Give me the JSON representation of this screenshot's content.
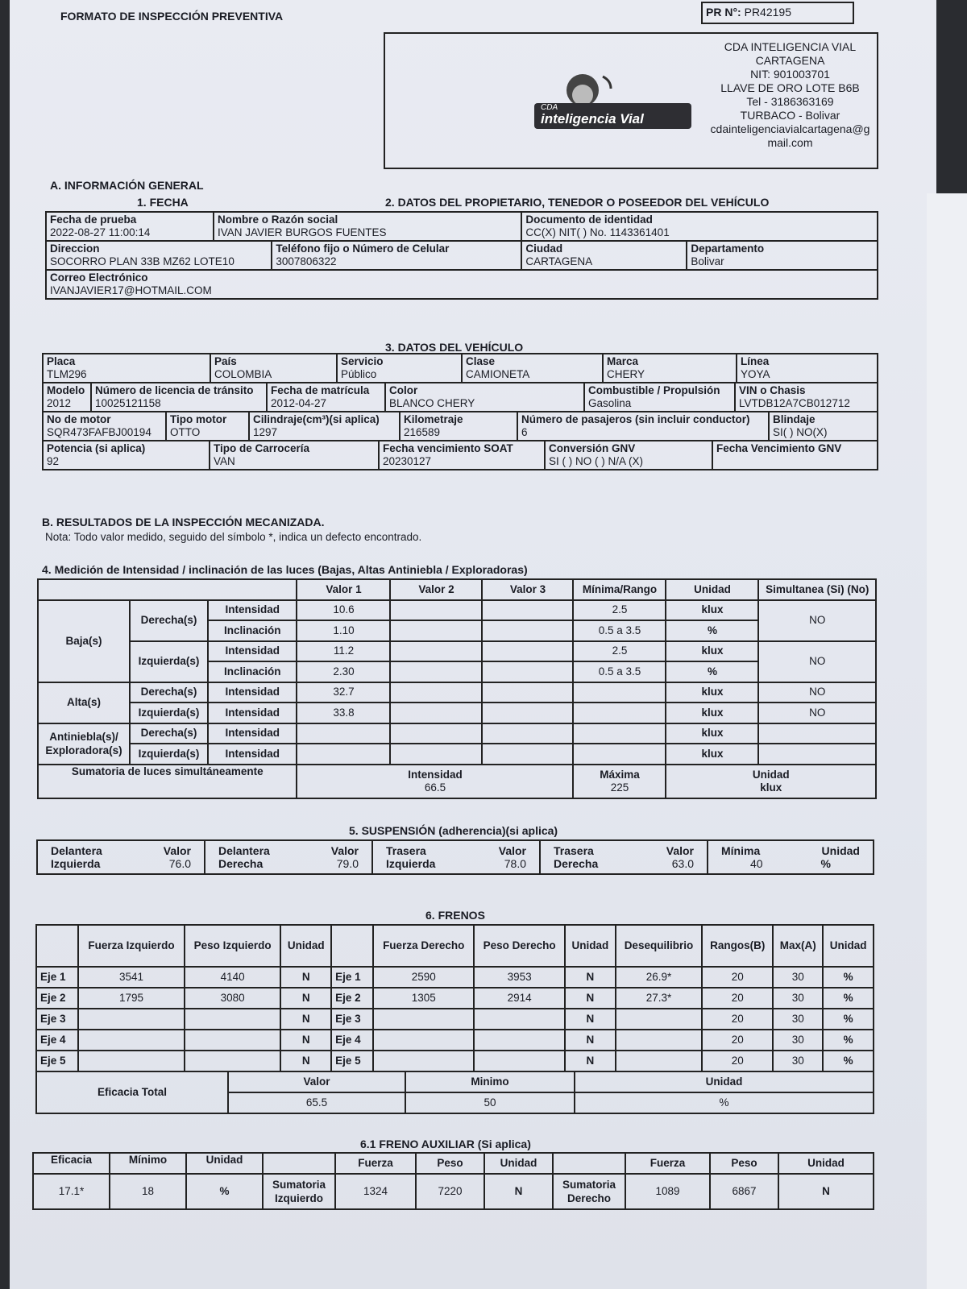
{
  "form": {
    "title": "FORMATO DE INSPECCIÓN PREVENTIVA",
    "pr_label": "PR N°:",
    "pr_number": "PR42195"
  },
  "company": {
    "logo_small": "CDA",
    "logo_text": "inteligencia Vial",
    "lines": [
      "CDA INTELIGENCIA VIAL",
      "CARTAGENA",
      "NIT: 901003701",
      "LLAVE DE ORO LOTE B6B",
      "Tel - 3186363169",
      "TURBACO - Bolivar",
      "cdainteligenciavialcartagena@g",
      "mail.com"
    ]
  },
  "general": {
    "section": "A. INFORMACIÓN GENERAL",
    "fecha_title": "1. FECHA",
    "owner_title": "2. DATOS DEL PROPIETARIO, TENEDOR O POSEEDOR DEL VEHÍCULO",
    "fields": [
      {
        "label": "Fecha de prueba",
        "value": "2022-08-27 11:00:14"
      },
      {
        "label": "Nombre o Razón social",
        "value": "IVAN JAVIER BURGOS FUENTES"
      },
      {
        "label": "Documento de identidad",
        "value": "CC(X) NIT( ) No. 1143361401"
      },
      {
        "label": "Direccion",
        "value": "SOCORRO PLAN 33B MZ62 LOTE10"
      },
      {
        "label": "Teléfono fijo o Número de Celular",
        "value": "3007806322"
      },
      {
        "label": "Ciudad",
        "value": "CARTAGENA"
      },
      {
        "label": "Departamento",
        "value": "Bolivar"
      },
      {
        "label": "Correo Electrónico",
        "value": "IVANJAVIER17@HOTMAIL.COM"
      }
    ]
  },
  "vehicle": {
    "title": "3. DATOS DEL VEHÍCULO",
    "fields": [
      {
        "label": "Placa",
        "value": "TLM296"
      },
      {
        "label": "País",
        "value": "COLOMBIA"
      },
      {
        "label": "Servicio",
        "value": "Público"
      },
      {
        "label": "Clase",
        "value": "CAMIONETA"
      },
      {
        "label": "Marca",
        "value": "CHERY"
      },
      {
        "label": "Línea",
        "value": "YOYA"
      },
      {
        "label": "Modelo",
        "value": "2012"
      },
      {
        "label": "Número de licencia de tránsito",
        "value": "10025121158"
      },
      {
        "label": "Fecha de matrícula",
        "value": "2012-04-27"
      },
      {
        "label": "Color",
        "value": "BLANCO CHERY"
      },
      {
        "label": "Combustible / Propulsión",
        "value": "Gasolina"
      },
      {
        "label": "VIN o Chasis",
        "value": "LVTDB12A7CB012712"
      },
      {
        "label": "No de motor",
        "value": "SQR473FAFBJ00194"
      },
      {
        "label": "Tipo motor",
        "value": "OTTO"
      },
      {
        "label": "Cilindraje(cm³)(si aplica)",
        "value": "1297"
      },
      {
        "label": "Kilometraje",
        "value": "216589"
      },
      {
        "label": "Número de pasajeros (sin incluir conductor)",
        "value": "6"
      },
      {
        "label": "Blindaje",
        "value": "SI( ) NO(X)"
      },
      {
        "label": "Potencia (si aplica)",
        "value": "92"
      },
      {
        "label": "Tipo de Carrocería",
        "value": "VAN"
      },
      {
        "label": "Fecha vencimiento SOAT",
        "value": "20230127"
      },
      {
        "label": "Conversión GNV",
        "value": "SI ( ) NO ( ) N/A (X)"
      },
      {
        "label": "Fecha Vencimiento GNV",
        "value": ""
      }
    ]
  },
  "results": {
    "title": "B. RESULTADOS DE LA INSPECCIÓN MECANIZADA.",
    "note": "Nota: Todo valor medido, seguido del símbolo *, indica un defecto encontrado."
  },
  "lights": {
    "title": "4. Medición de Intensidad / inclinación de las luces (Bajas, Altas Antiniebla / Exploradoras)",
    "headers": [
      "Valor 1",
      "Valor 2",
      "Valor 3",
      "Mínima/Rango",
      "Unidad",
      "Simultanea (Si) (No)"
    ],
    "groups": [
      "Baja(s)",
      "Alta(s)",
      "Antiniebla(s)/ Exploradora(s)"
    ],
    "sides": [
      "Derecha(s)",
      "Izquierda(s)"
    ],
    "rows": [
      {
        "measure": "Intensidad",
        "v1": "10.6",
        "min": "2.5",
        "unit": "klux",
        "sim": "NO"
      },
      {
        "measure": "Inclinación",
        "v1": "1.10",
        "min": "0.5 a 3.5",
        "unit": "%"
      },
      {
        "measure": "Intensidad",
        "v1": "11.2",
        "min": "2.5",
        "unit": "klux",
        "sim": "NO"
      },
      {
        "measure": "Inclinación",
        "v1": "2.30",
        "min": "0.5 a 3.5",
        "unit": "%"
      },
      {
        "measure": "Intensidad",
        "v1": "32.7",
        "min": "",
        "unit": "klux",
        "sim": "NO"
      },
      {
        "measure": "Intensidad",
        "v1": "33.8",
        "min": "",
        "unit": "klux",
        "sim": "NO"
      },
      {
        "measure": "Intensidad",
        "v1": "",
        "min": "",
        "unit": "klux",
        "sim": ""
      },
      {
        "measure": "Intensidad",
        "v1": "",
        "min": "",
        "unit": "klux",
        "sim": ""
      }
    ],
    "sum": {
      "label": "Sumatoria de luces simultáneamente",
      "int_label": "Intensidad",
      "int_value": "66.5",
      "max_label": "Máxima",
      "max_value": "225",
      "unit_label": "Unidad",
      "unit_value": "klux"
    }
  },
  "suspension": {
    "title": "5. SUSPENSIÓN (adherencia)(si aplica)",
    "items": [
      {
        "l1": "Delantera",
        "l2": "Izquierda",
        "vl": "Valor",
        "value": "76.0"
      },
      {
        "l1": "Delantera",
        "l2": "Derecha",
        "vl": "Valor",
        "value": "79.0"
      },
      {
        "l1": "Trasera",
        "l2": "Izquierda",
        "vl": "Valor",
        "value": "78.0"
      },
      {
        "l1": "Trasera",
        "l2": "Derecha",
        "vl": "Valor",
        "value": "63.0"
      }
    ],
    "min_label": "Mínima",
    "min_value": "40",
    "unit_label": "Unidad",
    "unit_value": "%"
  },
  "brakes": {
    "title": "6. FRENOS",
    "headers": [
      "Fuerza Izquierdo",
      "Peso Izquierdo",
      "Unidad",
      "Fuerza Derecho",
      "Peso Derecho",
      "Unidad",
      "Desequilibrio",
      "Rangos(B)",
      "Max(A)",
      "Unidad"
    ],
    "rows": [
      {
        "eje": "Eje 1",
        "fi": "3541",
        "pi": "4140",
        "u1": "N",
        "fd": "2590",
        "pd": "3953",
        "u2": "N",
        "des": "26.9*",
        "rango": "20",
        "max": "30",
        "u3": "%"
      },
      {
        "eje": "Eje 2",
        "fi": "1795",
        "pi": "3080",
        "u1": "N",
        "fd": "1305",
        "pd": "2914",
        "u2": "N",
        "des": "27.3*",
        "rango": "20",
        "max": "30",
        "u3": "%"
      },
      {
        "eje": "Eje 3",
        "fi": "",
        "pi": "",
        "u1": "N",
        "fd": "",
        "pd": "",
        "u2": "N",
        "des": "",
        "rango": "20",
        "max": "30",
        "u3": "%"
      },
      {
        "eje": "Eje 4",
        "fi": "",
        "pi": "",
        "u1": "N",
        "fd": "",
        "pd": "",
        "u2": "N",
        "des": "",
        "rango": "20",
        "max": "30",
        "u3": "%"
      },
      {
        "eje": "Eje 5",
        "fi": "",
        "pi": "",
        "u1": "N",
        "fd": "",
        "pd": "",
        "u2": "N",
        "des": "",
        "rango": "20",
        "max": "30",
        "u3": "%"
      }
    ],
    "total": {
      "label": "Eficacia Total",
      "valor_label": "Valor",
      "valor": "65.5",
      "min_label": "Minimo",
      "min": "50",
      "unit_label": "Unidad",
      "unit": "%"
    }
  },
  "aux": {
    "title": "6.1 FRENO AUXILIAR (Si aplica)",
    "eficacia_label": "Eficacia",
    "eficacia": "17.1*",
    "min_label": "Mínimo",
    "min": "18",
    "unit_label": "Unidad",
    "unit": "%",
    "fuerza_label": "Fuerza",
    "peso_label": "Peso",
    "sum_label": "Sumatoria",
    "left": {
      "side": "Izquierdo",
      "fuerza": "1324",
      "peso": "7220",
      "unit": "N"
    },
    "right": {
      "side": "Derecho",
      "fuerza": "1089",
      "peso": "6867",
      "unit": "N"
    }
  }
}
